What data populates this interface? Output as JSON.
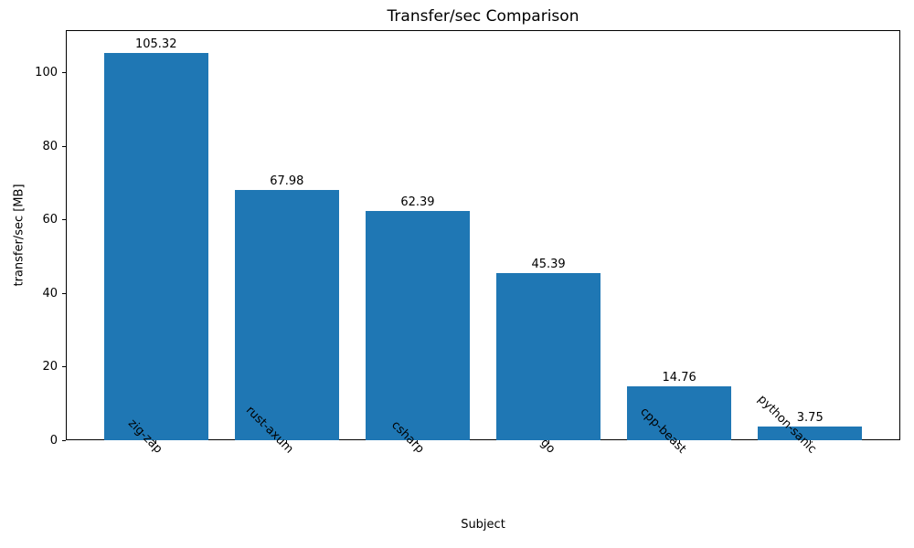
{
  "chart_data": {
    "type": "bar",
    "title": "Transfer/sec Comparison",
    "xlabel": "Subject",
    "ylabel": "transfer/sec [MB]",
    "categories": [
      "zig-zap",
      "rust-axum",
      "csharp",
      "go",
      "cpp-beast",
      "python-sanic"
    ],
    "values": [
      105.32,
      67.98,
      62.39,
      45.39,
      14.76,
      3.75
    ],
    "value_labels": [
      "105.32",
      "67.98",
      "62.39",
      "45.39",
      "14.76",
      "3.75"
    ],
    "ytick_labels": [
      "0",
      "20",
      "40",
      "60",
      "80",
      "100"
    ],
    "ytick_values": [
      0,
      20,
      40,
      60,
      80,
      100
    ],
    "ylim": [
      0,
      111.6
    ],
    "bar_width_fraction": 0.8,
    "x_tick_rotation_deg": 45,
    "grid": false,
    "legend_position": "none",
    "bar_color": "#1f77b4",
    "text_color": "#000000",
    "spine_color": "#000000"
  }
}
